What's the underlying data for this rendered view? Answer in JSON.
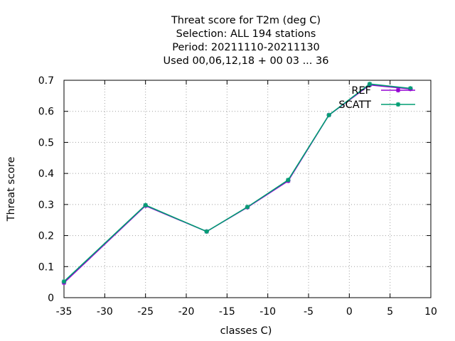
{
  "chart_data": {
    "type": "line",
    "title_lines": [
      "Threat score  for T2m (deg C)",
      "Selection: ALL    194 stations",
      "Period: 20211110-20211130",
      "Used  00,06,12,18 + 00 03 ... 36"
    ],
    "xlabel": "classes C)",
    "ylabel": "Threat score",
    "xlim": [
      -35,
      10
    ],
    "ylim": [
      0,
      0.7
    ],
    "xticks": [
      -35,
      -30,
      -25,
      -20,
      -15,
      -10,
      -5,
      0,
      5,
      10
    ],
    "yticks": [
      0,
      0.1,
      0.2,
      0.3,
      0.4,
      0.5,
      0.6,
      0.7
    ],
    "xtick_labels": [
      "-35",
      "-30",
      "-25",
      "-20",
      "-15",
      "-10",
      "-5",
      "0",
      "5",
      "10"
    ],
    "ytick_labels": [
      "0",
      "0.1",
      "0.2",
      "0.3",
      "0.4",
      "0.5",
      "0.6",
      "0.7"
    ],
    "grid": true,
    "legend_position": "top-right",
    "series": [
      {
        "name": "REF",
        "color": "#9400d3",
        "x": [
          -35,
          -25,
          -17.5,
          -12.5,
          -7.5,
          -2.5,
          2.5,
          7.5
        ],
        "y": [
          0.048,
          0.296,
          0.213,
          0.291,
          0.376,
          0.588,
          0.685,
          0.672
        ]
      },
      {
        "name": "SCATT",
        "color": "#009e73",
        "x": [
          -35,
          -25,
          -17.5,
          -12.5,
          -7.5,
          -2.5,
          2.5,
          7.5
        ],
        "y": [
          0.052,
          0.298,
          0.213,
          0.292,
          0.379,
          0.588,
          0.688,
          0.674
        ]
      }
    ]
  }
}
